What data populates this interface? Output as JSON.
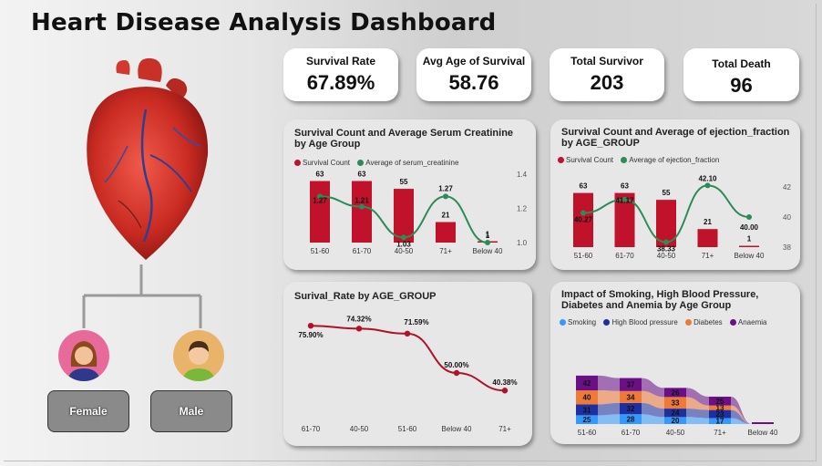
{
  "title": "Heart Disease Analysis Dashboard",
  "kpis": {
    "survival_rate": {
      "label": "Survival Rate",
      "value": "67.89%"
    },
    "avg_age": {
      "label": "Avg Age of Survival",
      "value": "58.76"
    },
    "total_survivor": {
      "label": "Total Survivor",
      "value": "203"
    },
    "total_death": {
      "label": "Total Death",
      "value": "96"
    }
  },
  "filters": {
    "female": "Female",
    "male": "Male"
  },
  "colors": {
    "bar": "#c0122b",
    "line": "#2e8b57",
    "smoking": "#3399ff",
    "hbp": "#1f2fa0",
    "diabetes": "#ee7a3a",
    "anaemia": "#6a0f86"
  },
  "chart_data": [
    {
      "type": "bar",
      "title": "Survival Count and Average Serum Creatinine by Age Group",
      "legend": [
        "Survival Count",
        "Average of serum_creatinine"
      ],
      "categories": [
        "51-60",
        "61-70",
        "40-50",
        "71+",
        "Below 40"
      ],
      "series": [
        {
          "name": "Survival Count",
          "type": "bar",
          "values": [
            63,
            63,
            55,
            21,
            1
          ]
        },
        {
          "name": "Average of serum_creatinine",
          "type": "line",
          "values": [
            1.27,
            1.21,
            1.03,
            1.27,
            1.0
          ]
        }
      ],
      "bar_labels": [
        "63",
        "63",
        "55",
        "21",
        "1"
      ],
      "line_labels": [
        "1.27",
        "1.21",
        "1.03",
        "1.27",
        "1"
      ],
      "y2_ticks": [
        "1.4",
        "1.2",
        "1.0"
      ],
      "ylim2": [
        1.0,
        1.4
      ]
    },
    {
      "type": "bar",
      "title": "Survival Count and Average of ejection_fraction by AGE_GROUP",
      "legend": [
        "Survival Count",
        "Average of ejection_fraction"
      ],
      "categories": [
        "51-60",
        "61-70",
        "40-50",
        "71+",
        "Below 40"
      ],
      "series": [
        {
          "name": "Survival Count",
          "type": "bar",
          "values": [
            63,
            63,
            55,
            21,
            1
          ]
        },
        {
          "name": "Average of ejection_fraction",
          "type": "line",
          "values": [
            40.27,
            41.17,
            38.33,
            42.1,
            40.0
          ]
        }
      ],
      "bar_labels": [
        "63",
        "63",
        "55",
        "21",
        "1"
      ],
      "line_labels": [
        "40.27",
        "41.17",
        "38.33",
        "42.10",
        "40.00"
      ],
      "y2_ticks": [
        "42",
        "40",
        "38"
      ],
      "ylim2": [
        38,
        42
      ]
    },
    {
      "type": "line",
      "title": "Surival_Rate by AGE_GROUP",
      "categories": [
        "61-70",
        "40-50",
        "51-60",
        "Below 40",
        "71+"
      ],
      "values": [
        75.9,
        74.32,
        71.59,
        50.0,
        40.38
      ],
      "labels": [
        "75.90%",
        "74.32%",
        "71.59%",
        "50.00%",
        "40.38%"
      ]
    },
    {
      "type": "area",
      "title": "Impact of Smoking, High Blood Pressure, Diabetes and Anemia by Age Group",
      "legend": [
        "Smoking",
        "High Blood pressure",
        "Diabetes",
        "Anaemia"
      ],
      "categories": [
        "51-60",
        "61-70",
        "40-50",
        "71+",
        "Below 40"
      ],
      "series": [
        {
          "name": "Smoking",
          "values": [
            25,
            28,
            20,
            17,
            0
          ]
        },
        {
          "name": "High Blood pressure",
          "values": [
            31,
            32,
            24,
            23,
            0
          ]
        },
        {
          "name": "Diabetes",
          "values": [
            40,
            34,
            33,
            13,
            0
          ]
        },
        {
          "name": "Anaemia",
          "values": [
            42,
            37,
            26,
            25,
            0
          ]
        }
      ]
    }
  ]
}
